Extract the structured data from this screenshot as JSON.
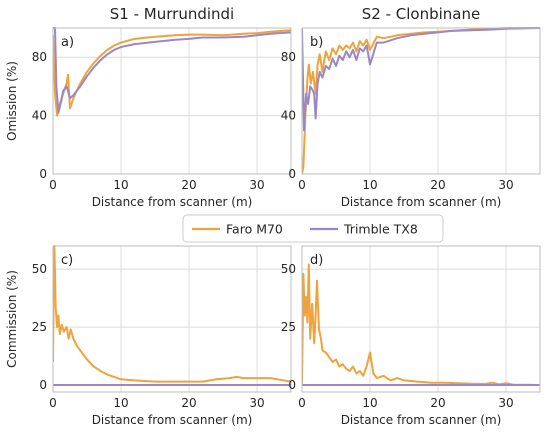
{
  "figure": {
    "legend": {
      "entries": [
        {
          "name": "Faro M70",
          "color": "#f0a23c"
        },
        {
          "name": "Trimble TX8",
          "color": "#9b86c6"
        }
      ]
    }
  },
  "chart_data": [
    {
      "type": "line",
      "title": "S1 - Murrundindi",
      "tag": "a)",
      "xlabel": "Distance from scanner (m)",
      "ylabel": "Omission (%)",
      "xlim": [
        0,
        35
      ],
      "ylim": [
        0,
        100
      ],
      "xticks": [
        0,
        10,
        20,
        30
      ],
      "yticks": [
        0,
        40,
        80
      ],
      "grid": true,
      "series": [
        {
          "name": "Faro M70",
          "color": "#f0a23c",
          "x": [
            0,
            0.3,
            0.6,
            1.0,
            1.5,
            2.0,
            2.2,
            2.5,
            3.0,
            4.0,
            5.0,
            6.0,
            7.0,
            8.0,
            9.0,
            10.0,
            12.0,
            15.0,
            18.0,
            20.0,
            22.0,
            25.0,
            28.0,
            30.0,
            32.0,
            35.0
          ],
          "y": [
            95,
            55,
            40,
            48,
            55,
            62,
            68,
            45,
            52,
            62,
            70,
            76,
            81,
            85,
            88,
            90,
            92.5,
            94,
            95,
            95.5,
            95.5,
            95,
            96,
            96.5,
            97.5,
            98.5
          ]
        },
        {
          "name": "Trimble TX8",
          "color": "#9b86c6",
          "x": [
            0,
            0.3,
            0.5,
            0.8,
            1.2,
            1.5,
            2.0,
            2.5,
            3.0,
            4.0,
            5.0,
            6.0,
            7.0,
            8.0,
            9.0,
            10.0,
            12.0,
            15.0,
            18.0,
            20.0,
            22.0,
            25.0,
            28.0,
            30.0,
            32.0,
            35.0
          ],
          "y": [
            100,
            100,
            60,
            42,
            50,
            57,
            60,
            52,
            54,
            60,
            67,
            73,
            78,
            82,
            85,
            87,
            89,
            90.5,
            92,
            92.5,
            93.5,
            93.5,
            94,
            95,
            96,
            97
          ]
        }
      ]
    },
    {
      "type": "line",
      "title": "S2 - Clonbinane",
      "tag": "b)",
      "xlabel": "Distance from scanner (m)",
      "ylabel": "",
      "xlim": [
        0,
        35
      ],
      "ylim": [
        0,
        100
      ],
      "xticks": [
        0,
        10,
        20,
        30
      ],
      "yticks": [
        0,
        40,
        80
      ],
      "grid": true,
      "series": [
        {
          "name": "Faro M70",
          "color": "#f0a23c",
          "x": [
            0,
            0.2,
            0.5,
            0.8,
            1.0,
            1.3,
            1.6,
            2.0,
            2.3,
            2.6,
            3.0,
            3.5,
            4.0,
            4.5,
            5.0,
            5.5,
            6.0,
            6.5,
            7.0,
            7.5,
            8.0,
            8.5,
            9.0,
            9.5,
            10.0,
            11.0,
            12.0,
            14.0,
            16.0,
            18.0,
            20.0,
            22.0,
            25.0,
            28.0,
            30.0,
            35.0
          ],
          "y": [
            0,
            5,
            40,
            65,
            75,
            62,
            70,
            55,
            75,
            82,
            70,
            84,
            78,
            86,
            82,
            88,
            85,
            88,
            86,
            90,
            84,
            91,
            88,
            92,
            85,
            94,
            93,
            95,
            96,
            97,
            97.5,
            98,
            99,
            99.5,
            100,
            100
          ]
        },
        {
          "name": "Trimble TX8",
          "color": "#9b86c6",
          "x": [
            0,
            0.3,
            0.6,
            0.9,
            1.2,
            1.5,
            1.8,
            2.0,
            2.3,
            2.6,
            3.0,
            3.5,
            4.0,
            4.5,
            5.0,
            5.5,
            6.0,
            6.5,
            7.0,
            7.5,
            8.0,
            8.5,
            9.0,
            9.5,
            10.0,
            11.0,
            12.0,
            14.0,
            16.0,
            18.0,
            20.0,
            22.0,
            25.0,
            28.0,
            30.0,
            35.0
          ],
          "y": [
            100,
            30,
            55,
            48,
            60,
            58,
            55,
            38,
            62,
            70,
            66,
            74,
            72,
            79,
            74,
            81,
            78,
            84,
            80,
            85,
            78,
            86,
            84,
            88,
            75,
            90,
            90,
            93,
            95,
            96,
            97,
            98,
            98.5,
            99,
            99.5,
            100
          ]
        }
      ]
    },
    {
      "type": "line",
      "title": "",
      "tag": "c)",
      "xlabel": "Distance from scanner (m)",
      "ylabel": "Commission (%)",
      "xlim": [
        0,
        35
      ],
      "ylim": [
        -3,
        60
      ],
      "xticks": [
        0,
        10,
        20,
        30
      ],
      "yticks": [
        0,
        25,
        50
      ],
      "grid": true,
      "series": [
        {
          "name": "Faro M70",
          "color": "#f0a23c",
          "x": [
            0,
            0.1,
            0.2,
            0.4,
            0.6,
            0.8,
            1.0,
            1.3,
            1.6,
            2.0,
            2.3,
            2.6,
            3.0,
            3.5,
            4.0,
            5.0,
            6.0,
            7.0,
            8.0,
            9.0,
            10.0,
            12.0,
            15.0,
            18.0,
            20.0,
            22.0,
            24.0,
            26.0,
            27.0,
            28.0,
            30.0,
            32.0,
            33.0,
            35.0
          ],
          "y": [
            10,
            45,
            60,
            33,
            25,
            30,
            22,
            26,
            23,
            25,
            20,
            24,
            20,
            17,
            15,
            11,
            8,
            6,
            4.5,
            3.5,
            2.5,
            2,
            1.5,
            1.5,
            1.5,
            1.5,
            2.5,
            3,
            3.5,
            3,
            3,
            3,
            2.5,
            1.5
          ]
        },
        {
          "name": "Trimble TX8",
          "color": "#9b86c6",
          "x": [
            0,
            35
          ],
          "y": [
            0,
            0
          ]
        }
      ]
    },
    {
      "type": "line",
      "title": "",
      "tag": "d)",
      "xlabel": "Distance from scanner (m)",
      "ylabel": "",
      "xlim": [
        0,
        35
      ],
      "ylim": [
        -3,
        60
      ],
      "xticks": [
        0,
        10,
        20,
        30
      ],
      "yticks": [
        0,
        25,
        50
      ],
      "grid": true,
      "series": [
        {
          "name": "Faro M70",
          "color": "#f0a23c",
          "x": [
            0,
            0.2,
            0.4,
            0.6,
            0.8,
            1.0,
            1.2,
            1.5,
            1.8,
            2.0,
            2.2,
            2.5,
            2.8,
            3.0,
            3.5,
            4.0,
            4.5,
            5.0,
            5.5,
            6.0,
            6.5,
            7.0,
            7.5,
            8.0,
            8.5,
            9.0,
            9.5,
            10.0,
            10.5,
            11.0,
            12.0,
            13.0,
            14.0,
            15.0,
            17.0,
            19.0,
            21.0,
            23.0,
            25.0,
            27.0,
            28.0,
            29.0,
            30.0,
            31.0,
            35.0
          ],
          "y": [
            0,
            48,
            30,
            38,
            27,
            52,
            20,
            35,
            18,
            30,
            45,
            24,
            20,
            15,
            14,
            12,
            10,
            11,
            8,
            9,
            7,
            6,
            8,
            5,
            6,
            4,
            8,
            14,
            5,
            3,
            4,
            2,
            3,
            2,
            1.5,
            1,
            1,
            0.8,
            0.6,
            0.5,
            1,
            0.3,
            0.8,
            0.2,
            0
          ]
        },
        {
          "name": "Trimble TX8",
          "color": "#9b86c6",
          "x": [
            0,
            35
          ],
          "y": [
            0,
            0
          ]
        }
      ]
    }
  ]
}
